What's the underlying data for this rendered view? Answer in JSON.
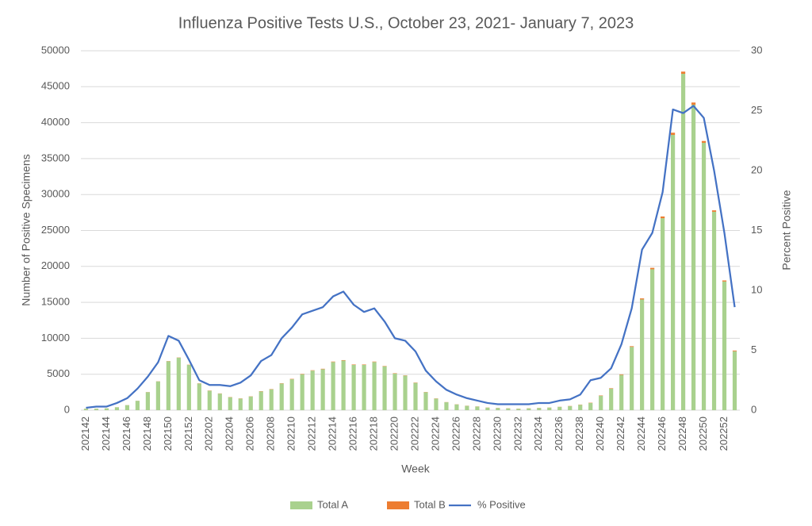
{
  "chart_data": {
    "type": "bar-line",
    "title": "Influenza Positive Tests U.S., October 23, 2021- January 7, 2023",
    "x_label": "Week",
    "y_label": "Number of Positive Specimens",
    "y2_label": "Percent Positive",
    "categories": [
      "202142",
      null,
      "202144",
      null,
      "202146",
      null,
      "202148",
      null,
      "202150",
      null,
      "202152",
      null,
      "202202",
      null,
      "202204",
      null,
      "202206",
      null,
      "202208",
      null,
      "202210",
      null,
      "202212",
      null,
      "202214",
      null,
      "202216",
      null,
      "202218",
      null,
      "202220",
      null,
      "202222",
      null,
      "202224",
      null,
      "202226",
      null,
      "202228",
      null,
      "202230",
      null,
      "202232",
      null,
      "202234",
      null,
      "202236",
      null,
      "202238",
      null,
      "202240",
      null,
      "202242",
      null,
      "202244",
      null,
      "202246",
      null,
      "202248",
      null,
      "202250",
      null,
      "202252",
      null
    ],
    "series": [
      {
        "name": "Total A",
        "type": "bar",
        "color": "#a9d18e",
        "values": [
          200,
          200,
          250,
          400,
          700,
          1300,
          2500,
          4000,
          6800,
          7300,
          6300,
          3700,
          2700,
          2300,
          1800,
          1600,
          1900,
          2600,
          2900,
          3700,
          4300,
          5000,
          5500,
          5700,
          6700,
          6900,
          6300,
          6300,
          6700,
          6100,
          5100,
          4800,
          3800,
          2500,
          1600,
          1100,
          800,
          600,
          500,
          350,
          300,
          250,
          200,
          250,
          300,
          350,
          450,
          550,
          750,
          1000,
          2000,
          3000,
          4900,
          8800,
          15400,
          19600,
          26700,
          38300,
          46800,
          42500,
          37200,
          27600,
          17900,
          8200
        ]
      },
      {
        "name": "Total B",
        "type": "bar",
        "color": "#ed7d31",
        "values": [
          10,
          10,
          10,
          10,
          10,
          10,
          20,
          20,
          30,
          30,
          30,
          30,
          30,
          30,
          30,
          30,
          30,
          40,
          40,
          40,
          50,
          50,
          50,
          60,
          60,
          60,
          60,
          60,
          60,
          50,
          50,
          40,
          40,
          30,
          30,
          20,
          20,
          20,
          20,
          20,
          20,
          20,
          20,
          20,
          20,
          20,
          20,
          30,
          30,
          40,
          50,
          60,
          80,
          100,
          150,
          200,
          250,
          300,
          300,
          300,
          250,
          200,
          150,
          100
        ]
      },
      {
        "name": "% Positive",
        "type": "line",
        "axis": "y2",
        "color": "#4472c4",
        "values": [
          0.2,
          0.3,
          0.3,
          0.6,
          1.0,
          1.8,
          2.8,
          4.0,
          6.2,
          5.8,
          4.2,
          2.5,
          2.1,
          2.1,
          2.0,
          2.3,
          2.9,
          4.1,
          4.6,
          6.0,
          6.9,
          8.0,
          8.3,
          8.6,
          9.5,
          9.9,
          8.8,
          8.2,
          8.5,
          7.4,
          6.0,
          5.8,
          4.9,
          3.3,
          2.4,
          1.7,
          1.3,
          1.0,
          0.8,
          0.6,
          0.5,
          0.5,
          0.5,
          0.5,
          0.6,
          0.6,
          0.8,
          0.9,
          1.3,
          2.5,
          2.7,
          3.5,
          5.5,
          8.5,
          13.4,
          14.8,
          18.2,
          25.1,
          24.8,
          25.4,
          24.4,
          20.0,
          14.8,
          8.6
        ]
      }
    ],
    "ylim": [
      0,
      50000
    ],
    "yticks": [
      0,
      5000,
      10000,
      15000,
      20000,
      25000,
      30000,
      35000,
      40000,
      45000,
      50000
    ],
    "y2lim": [
      0,
      30
    ],
    "y2ticks": [
      0,
      5,
      10,
      15,
      20,
      25,
      30
    ],
    "grid": true,
    "legend": "bottom"
  }
}
